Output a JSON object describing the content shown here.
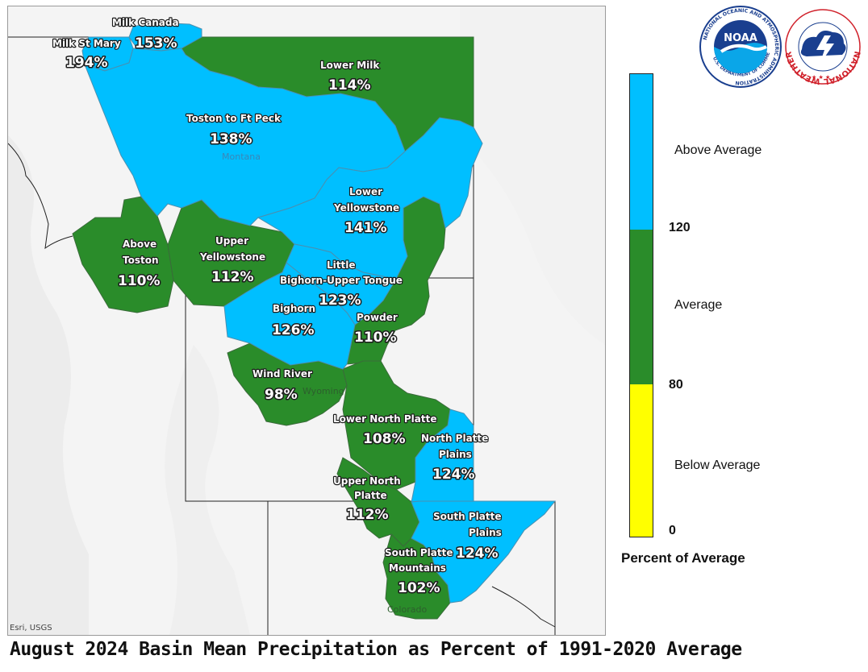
{
  "title": "August 2024 Basin Mean Precipitation as Percent of 1991-2020 Average",
  "attribution": "Esri, USGS",
  "logos": {
    "noaa": {
      "text": "NOAA",
      "ring_text": "NATIONAL OCEANIC AND ATMOSPHERIC ADMINISTRATION",
      "footer_text": "U.S. DEPARTMENT OF COMMERCE"
    },
    "nws": {
      "ring_text": "NATIONAL WEATHER SERVICE"
    }
  },
  "states": {
    "montana": "Montana",
    "wyoming": "Wyoming",
    "colorado": "Colorado"
  },
  "legend": {
    "title": "Percent of Average",
    "categories": [
      {
        "label": "Above Average",
        "color": "#00bfff",
        "min": 120
      },
      {
        "label": "Average",
        "color": "#2a8c2a",
        "min": 80,
        "max": 120
      },
      {
        "label": "Below Average",
        "color": "#ffff00",
        "min": 0,
        "max": 80
      }
    ],
    "ticks": [
      "120",
      "80",
      "0"
    ]
  },
  "basins": [
    {
      "id": "milk-canada",
      "name": "Milk Canada",
      "percent": "153%",
      "category": "Above Average"
    },
    {
      "id": "milk-st-mary",
      "name": "Milk St Mary",
      "percent": "194%",
      "category": "Above Average"
    },
    {
      "id": "lower-milk",
      "name": "Lower Milk",
      "percent": "114%",
      "category": "Average"
    },
    {
      "id": "toston-ft-peck",
      "name": "Toston to Ft Peck",
      "percent": "138%",
      "category": "Above Average"
    },
    {
      "id": "lower-yellowstone",
      "name_lines": [
        "Lower",
        "Yellowstone"
      ],
      "percent": "141%",
      "category": "Above Average"
    },
    {
      "id": "above-toston",
      "name_lines": [
        "Above",
        "Toston"
      ],
      "percent": "110%",
      "category": "Average"
    },
    {
      "id": "upper-yellowstone",
      "name_lines": [
        "Upper",
        "Yellowstone"
      ],
      "percent": "112%",
      "category": "Average"
    },
    {
      "id": "little-bighorn",
      "name_lines": [
        "Little",
        "Bighorn-Upper Tongue"
      ],
      "percent": "123%",
      "category": "Above Average"
    },
    {
      "id": "bighorn",
      "name": "Bighorn",
      "percent": "126%",
      "category": "Above Average"
    },
    {
      "id": "powder",
      "name": "Powder",
      "percent": "110%",
      "category": "Average"
    },
    {
      "id": "wind-river",
      "name": "Wind River",
      "percent": "98%",
      "category": "Average"
    },
    {
      "id": "lower-north-platte",
      "name": "Lower North Platte",
      "percent": "108%",
      "category": "Average"
    },
    {
      "id": "north-platte-plains",
      "name_lines": [
        "North Platte",
        "Plains"
      ],
      "percent": "124%",
      "category": "Above Average"
    },
    {
      "id": "upper-north-platte",
      "name_lines": [
        "Upper North",
        "Platte"
      ],
      "percent": "112%",
      "category": "Average"
    },
    {
      "id": "south-platte-plains",
      "name_lines": [
        "South Platte",
        "Plains"
      ],
      "percent": "124%",
      "category": "Above Average"
    },
    {
      "id": "south-platte-mountains",
      "name_lines": [
        "South Platte",
        "Mountains"
      ],
      "percent": "102%",
      "category": "Average"
    }
  ]
}
